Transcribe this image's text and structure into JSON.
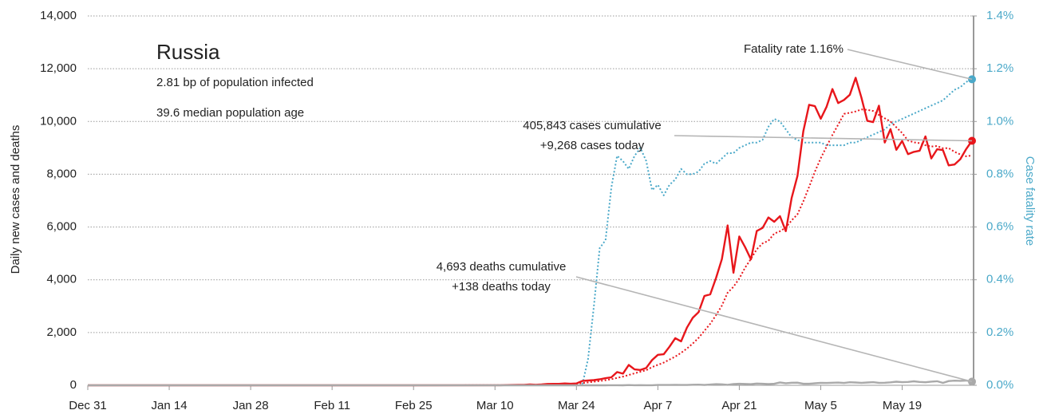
{
  "chart_data": {
    "type": "line",
    "title": "Russia",
    "subtitle": [
      "2.81 bp of population infected",
      "39.6 median population age"
    ],
    "ylabel": "Daily new cases and deaths",
    "y2label": "Case fatality rate",
    "annotations": [
      [
        "Fatality rate 1.16%"
      ],
      [
        "405,843 cases cumulative",
        "+9,268 cases today"
      ],
      [
        "4,693 deaths cumulative",
        "+138 deaths today"
      ]
    ],
    "x": [
      0,
      14,
      28,
      42,
      56,
      70,
      71,
      72,
      73,
      74,
      75,
      76,
      77,
      78,
      79,
      80,
      81,
      82,
      83,
      84,
      85,
      86,
      87,
      88,
      89,
      90,
      91,
      92,
      93,
      94,
      95,
      96,
      97,
      98,
      99,
      100,
      101,
      102,
      103,
      104,
      105,
      106,
      107,
      108,
      109,
      110,
      111,
      112,
      113,
      114,
      115,
      116,
      117,
      118,
      119,
      120,
      121,
      122,
      123,
      124,
      125,
      126,
      127,
      128,
      129,
      130,
      131,
      132,
      133,
      134,
      135,
      136,
      137,
      138,
      139,
      140,
      141,
      142,
      143,
      144,
      145,
      146,
      147,
      148,
      149,
      150,
      151,
      152
    ],
    "xlim": [
      0,
      152
    ],
    "xticks": [
      {
        "value": 0,
        "label": "Dec 31"
      },
      {
        "value": 14,
        "label": "Jan 14"
      },
      {
        "value": 28,
        "label": "Jan 28"
      },
      {
        "value": 42,
        "label": "Feb 11"
      },
      {
        "value": 56,
        "label": "Feb 25"
      },
      {
        "value": 70,
        "label": "Mar 10"
      },
      {
        "value": 84,
        "label": "Mar 24"
      },
      {
        "value": 98,
        "label": "Apr 7"
      },
      {
        "value": 112,
        "label": "Apr 21"
      },
      {
        "value": 126,
        "label": "May 5"
      },
      {
        "value": 140,
        "label": "May 19"
      }
    ],
    "ylim": [
      0,
      14000
    ],
    "yticks": [
      {
        "value": 0,
        "label": "0"
      },
      {
        "value": 2000,
        "label": "2,000"
      },
      {
        "value": 4000,
        "label": "4,000"
      },
      {
        "value": 6000,
        "label": "6,000"
      },
      {
        "value": 8000,
        "label": "8,000"
      },
      {
        "value": 10000,
        "label": "10,000"
      },
      {
        "value": 12000,
        "label": "12,000"
      },
      {
        "value": 14000,
        "label": "14,000"
      }
    ],
    "y2lim": [
      0,
      1.4
    ],
    "y2ticks": [
      {
        "value": 0,
        "label": "0.0%"
      },
      {
        "value": 0.2,
        "label": "0.2%"
      },
      {
        "value": 0.4,
        "label": "0.4%"
      },
      {
        "value": 0.6,
        "label": "0.6%"
      },
      {
        "value": 0.8,
        "label": "0.8%"
      },
      {
        "value": 1.0,
        "label": "1.0%"
      },
      {
        "value": 1.2,
        "label": "1.2%"
      },
      {
        "value": 1.4,
        "label": "1.4%"
      }
    ],
    "grid": true,
    "series": [
      {
        "color": "#4ba9c9",
        "dash": "dotted",
        "axis": "y2",
        "endpoint": true,
        "values": [
          0,
          0,
          0,
          0,
          0,
          0,
          0,
          0,
          0,
          0,
          0,
          0,
          0,
          0,
          0,
          0,
          0,
          0,
          0,
          0,
          0,
          0.1,
          0.3,
          0.52,
          0.55,
          0.75,
          0.87,
          0.85,
          0.82,
          0.87,
          0.9,
          0.85,
          0.74,
          0.76,
          0.72,
          0.76,
          0.78,
          0.82,
          0.8,
          0.8,
          0.81,
          0.84,
          0.85,
          0.84,
          0.86,
          0.88,
          0.88,
          0.9,
          0.91,
          0.92,
          0.92,
          0.93,
          0.98,
          1.01,
          1.0,
          0.97,
          0.94,
          0.93,
          0.92,
          0.92,
          0.92,
          0.92,
          0.91,
          0.91,
          0.91,
          0.91,
          0.92,
          0.92,
          0.93,
          0.94,
          0.95,
          0.96,
          0.97,
          0.99,
          1.0,
          1.01,
          1.02,
          1.03,
          1.04,
          1.05,
          1.06,
          1.07,
          1.08,
          1.1,
          1.12,
          1.13,
          1.15,
          1.16
        ]
      },
      {
        "color": "#e8161b",
        "dash": "dotted",
        "axis": "y",
        "endpoint": false,
        "values": [
          0,
          0,
          0,
          0,
          0,
          2,
          3,
          4,
          5,
          7,
          8,
          12,
          14,
          19,
          25,
          31,
          37,
          46,
          50,
          55,
          85,
          110,
          135,
          160,
          195,
          230,
          280,
          330,
          390,
          455,
          515,
          570,
          690,
          775,
          860,
          975,
          1090,
          1230,
          1395,
          1580,
          1800,
          2065,
          2330,
          2660,
          3020,
          3510,
          3730,
          4050,
          4460,
          4790,
          5155,
          5380,
          5480,
          5750,
          5840,
          5980,
          6250,
          6480,
          6970,
          7520,
          8100,
          8610,
          9050,
          9490,
          9880,
          10290,
          10330,
          10380,
          10455,
          10440,
          10400,
          10245,
          10120,
          10000,
          9780,
          9560,
          9280,
          9210,
          9180,
          9100,
          9050,
          9070,
          8985,
          8990,
          8850,
          8750,
          8680,
          8710
        ]
      },
      {
        "color": "#e8161b",
        "dash": "solid",
        "axis": "y",
        "endpoint": true,
        "values": [
          0,
          0,
          0,
          0,
          0,
          3,
          3,
          8,
          11,
          14,
          14,
          30,
          21,
          33,
          52,
          54,
          53,
          71,
          57,
          71,
          163,
          182,
          196,
          228,
          270,
          302,
          501,
          440,
          771,
          601,
          582,
          658,
          954,
          1154,
          1175,
          1459,
          1786,
          1667,
          2186,
          2558,
          2774,
          3388,
          3448,
          4070,
          4785,
          6060,
          4268,
          5642,
          5236,
          4774,
          5849,
          5966,
          6361,
          6198,
          6411,
          5841,
          7099,
          7933,
          9623,
          10633,
          10581,
          10102,
          10559,
          11231,
          10699,
          10817,
          11012,
          11656,
          10899,
          10028,
          9974,
          10598,
          9200,
          9709,
          8926,
          9263,
          8764,
          8849,
          8894,
          9434,
          8599,
          8946,
          8915,
          8338,
          8371,
          8572,
          8952,
          9268
        ]
      },
      {
        "color": "#a9a9a9",
        "dash": "solid",
        "axis": "y",
        "endpoint": true,
        "values": [
          0,
          0,
          0,
          0,
          0,
          0,
          0,
          0,
          0,
          0,
          0,
          0,
          0,
          0,
          0,
          0,
          0,
          0,
          0,
          0,
          1,
          0,
          1,
          1,
          0,
          2,
          4,
          1,
          9,
          2,
          5,
          2,
          2,
          11,
          13,
          13,
          18,
          12,
          13,
          22,
          24,
          12,
          28,
          41,
          36,
          18,
          45,
          57,
          51,
          42,
          66,
          58,
          47,
          57,
          108,
          79,
          96,
          101,
          57,
          58,
          76,
          95,
          88,
          98,
          104,
          88,
          115,
          107,
          94,
          107,
          119,
          93,
          96,
          113,
          135,
          119,
          127,
          150,
          128,
          116,
          139,
          153,
          92,
          161,
          174,
          169,
          181,
          138
        ]
      }
    ]
  }
}
